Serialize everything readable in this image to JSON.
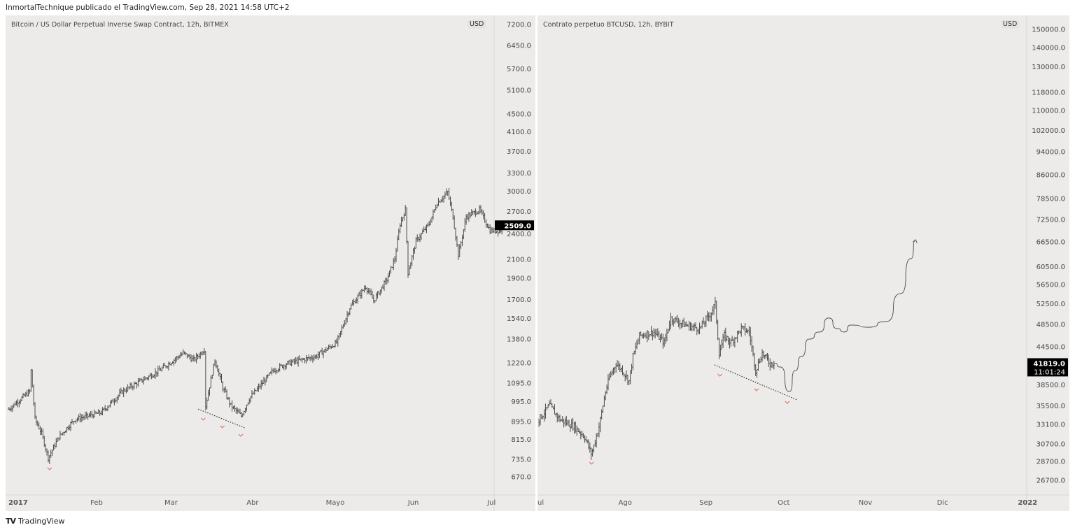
{
  "header": {
    "text": "InmortalTechnique publicado el TradingView.com, Sep 28, 2021 14:58 UTC+2"
  },
  "footer": {
    "brand": "TradingView",
    "logo_icon": "tradingview-logo-icon"
  },
  "colors": {
    "bar": "#4a4a4a",
    "marker": "#e07a6a",
    "background": "#ecebe9",
    "last_price_bg": "#000000"
  },
  "chart_data": [
    {
      "type": "ohlc",
      "title": "Bitcoin / US Dollar Perpetual Inverse Swap Contract, 12h, BITMEX",
      "currency": "USD",
      "scale": "log",
      "y_ticks": [
        "7200.0",
        "6450.0",
        "5700.0",
        "5100.0",
        "4500.0",
        "4100.0",
        "3700.0",
        "3300.0",
        "3000.0",
        "2700.0",
        "2400.0",
        "2100.0",
        "1900.0",
        "1700.0",
        "1540.0",
        "1380.0",
        "1220.0",
        "1095.0",
        "995.0",
        "895.0",
        "815.0",
        "735.0",
        "670.0"
      ],
      "x_ticks": [
        {
          "label": "2017",
          "day": 0,
          "bold": true
        },
        {
          "label": "Feb",
          "day": 31
        },
        {
          "label": "Mar",
          "day": 59
        },
        {
          "label": "Abr",
          "day": 90
        },
        {
          "label": "Mayo",
          "day": 120
        },
        {
          "label": "Jun",
          "day": 151
        },
        {
          "label": "Jul",
          "day": 181
        }
      ],
      "last_price": "2509.0",
      "price_path_day_price": [
        [
          -1,
          956
        ],
        [
          7,
          1049
        ],
        [
          7.5,
          1171
        ],
        [
          9,
          906
        ],
        [
          11.5,
          842
        ],
        [
          14,
          740
        ],
        [
          18,
          826
        ],
        [
          24,
          906
        ],
        [
          34,
          939
        ],
        [
          42,
          1049
        ],
        [
          56,
          1171
        ],
        [
          65,
          1283
        ],
        [
          69,
          1237
        ],
        [
          73,
          1307
        ],
        [
          73.5,
          974
        ],
        [
          77,
          1237
        ],
        [
          80,
          1068
        ],
        [
          83,
          974
        ],
        [
          87,
          922
        ],
        [
          90,
          1011
        ],
        [
          99,
          1171
        ],
        [
          104,
          1214
        ],
        [
          115,
          1260
        ],
        [
          123,
          1355
        ],
        [
          128,
          1629
        ],
        [
          134,
          1819
        ],
        [
          137,
          1691
        ],
        [
          142,
          1887
        ],
        [
          145,
          2107
        ],
        [
          147,
          2530
        ],
        [
          149,
          2722
        ],
        [
          150,
          1957
        ],
        [
          153,
          2308
        ],
        [
          158,
          2530
        ],
        [
          161,
          2824
        ],
        [
          165,
          2984
        ],
        [
          167,
          2625
        ],
        [
          169,
          2145
        ],
        [
          172,
          2625
        ],
        [
          177,
          2722
        ],
        [
          181,
          2440
        ],
        [
          185,
          2440
        ],
        [
          186,
          2509
        ]
      ],
      "trendline": [
        [
          70.7,
          956
        ],
        [
          88.2,
          867
        ]
      ],
      "markers": [
        [
          14.5,
          698
        ],
        [
          72.6,
          906
        ],
        [
          79.8,
          870
        ],
        [
          86.8,
          832
        ]
      ]
    },
    {
      "type": "ohlc",
      "title": "Contrato perpetuo BTCUSD, 12h, BYBIT",
      "currency": "USD",
      "scale": "log",
      "y_ticks": [
        "150000.0",
        "140000.0",
        "130000.0",
        "118000.0",
        "110000.0",
        "102000.0",
        "94000.0",
        "86000.0",
        "78500.0",
        "72500.0",
        "66500.0",
        "60500.0",
        "56500.0",
        "52500.0",
        "48500.0",
        "44500.0",
        "38500.0",
        "35500.0",
        "33100.0",
        "30700.0",
        "28700.0",
        "26700.0"
      ],
      "x_ticks": [
        {
          "label": "ul",
          "day": 0
        },
        {
          "label": "Ago",
          "day": 31
        },
        {
          "label": "Sep",
          "day": 62
        },
        {
          "label": "Oct",
          "day": 92
        },
        {
          "label": "Nov",
          "day": 123
        },
        {
          "label": "Dic",
          "day": 153
        },
        {
          "label": "2022",
          "day": 184,
          "bold": true
        }
      ],
      "last_price": "41819.0",
      "countdown": "11:01:24",
      "price_path_day_price": [
        [
          -0.5,
          33700
        ],
        [
          3.5,
          35560
        ],
        [
          7.5,
          33700
        ],
        [
          13,
          32800
        ],
        [
          17,
          31530
        ],
        [
          19.6,
          29480
        ],
        [
          22.5,
          32800
        ],
        [
          25,
          37500
        ],
        [
          26.5,
          39600
        ],
        [
          29,
          41750
        ],
        [
          31.5,
          40640
        ],
        [
          34,
          39050
        ],
        [
          35.5,
          42900
        ],
        [
          38,
          46470
        ],
        [
          43.5,
          47110
        ],
        [
          47.5,
          45220
        ],
        [
          50,
          49700
        ],
        [
          55.5,
          48370
        ],
        [
          61,
          47740
        ],
        [
          65,
          50390
        ],
        [
          67,
          52430
        ],
        [
          68.5,
          43460
        ],
        [
          70.5,
          46470
        ],
        [
          73,
          45220
        ],
        [
          77,
          47740
        ],
        [
          80,
          47110
        ],
        [
          82.5,
          40640
        ],
        [
          85,
          43460
        ],
        [
          88,
          41750
        ],
        [
          89.5,
          41819
        ]
      ],
      "projection": [
        [
          89.5,
          41819
        ],
        [
          92,
          41200
        ],
        [
          95.4,
          37500
        ],
        [
          97.6,
          40640
        ],
        [
          100,
          42900
        ],
        [
          103,
          45850
        ],
        [
          107,
          47110
        ],
        [
          110.5,
          49700
        ],
        [
          113.7,
          47740
        ],
        [
          116.4,
          47110
        ],
        [
          119,
          48370
        ],
        [
          125.8,
          47980
        ],
        [
          132.5,
          49030
        ],
        [
          138,
          54570
        ],
        [
          142,
          62400
        ],
        [
          143.8,
          67060
        ]
      ],
      "trendline": [
        [
          66.7,
          41540
        ],
        [
          98.4,
          36330
        ]
      ],
      "markers": [
        [
          19.6,
          28480
        ],
        [
          68.8,
          39900
        ],
        [
          82.8,
          37720
        ],
        [
          94.6,
          35940
        ]
      ]
    }
  ]
}
